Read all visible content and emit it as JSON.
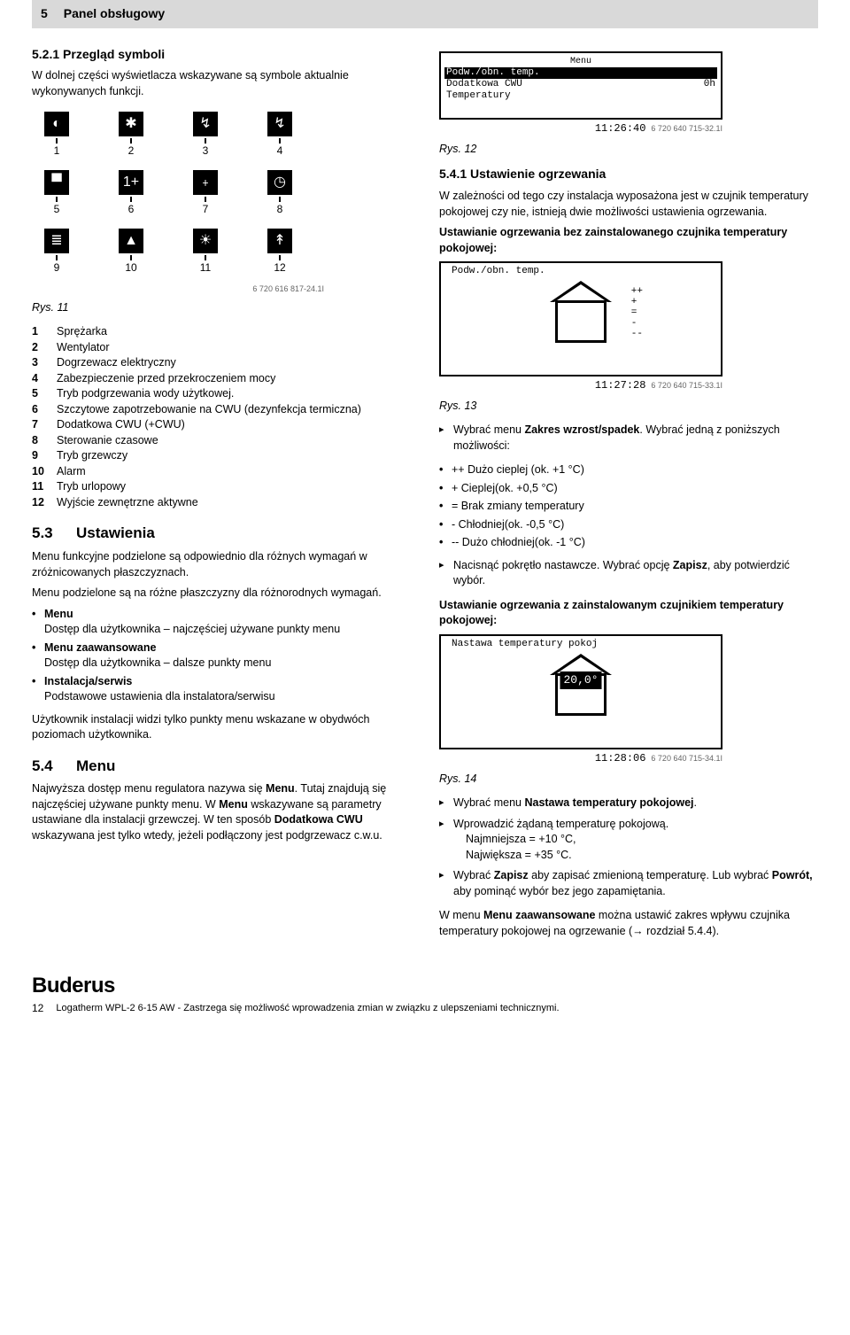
{
  "breadcrumb": {
    "num": "5",
    "title": "Panel obsługowy"
  },
  "s521": {
    "heading": "5.2.1   Przegląd symboli",
    "intro": "W dolnej części wyświetlacza wskazywane są symbole aktualnie wykonywanych funkcji."
  },
  "iconGrid": {
    "icons": [
      {
        "n": "1",
        "glyph": "◐"
      },
      {
        "n": "2",
        "glyph": "✱"
      },
      {
        "n": "3",
        "glyph": "↯"
      },
      {
        "n": "4",
        "glyph": "↯"
      },
      {
        "n": "5",
        "glyph": "▀"
      },
      {
        "n": "6",
        "glyph": "1+"
      },
      {
        "n": "7",
        "glyph": "﹢"
      },
      {
        "n": "8",
        "glyph": "◷"
      },
      {
        "n": "9",
        "glyph": "≣"
      },
      {
        "n": "10",
        "glyph": "▲"
      },
      {
        "n": "11",
        "glyph": "☀"
      },
      {
        "n": "12",
        "glyph": "↟"
      }
    ],
    "code": "6 720 616 817-24.1I"
  },
  "fig11": "Rys. 11",
  "legend": [
    {
      "n": "1",
      "t": "Sprężarka"
    },
    {
      "n": "2",
      "t": "Wentylator"
    },
    {
      "n": "3",
      "t": "Dogrzewacz elektryczny"
    },
    {
      "n": "4",
      "t": "Zabezpieczenie przed przekroczeniem mocy"
    },
    {
      "n": "5",
      "t": "Tryb podgrzewania wody użytkowej."
    },
    {
      "n": "6",
      "t": "Szczytowe zapotrzebowanie na CWU (dezynfekcja termiczna)"
    },
    {
      "n": "7",
      "t": "Dodatkowa CWU (+CWU)"
    },
    {
      "n": "8",
      "t": "Sterowanie czasowe"
    },
    {
      "n": "9",
      "t": "Tryb grzewczy"
    },
    {
      "n": "10",
      "t": "Alarm"
    },
    {
      "n": "11",
      "t": "Tryb urlopowy"
    },
    {
      "n": "12",
      "t": "Wyjście zewnętrzne aktywne"
    }
  ],
  "s53": {
    "num": "5.3",
    "title": "Ustawienia",
    "p1": "Menu funkcyjne podzielone są odpowiednio dla różnych wymagań w zróżnicowanych płaszczyznach.",
    "p2": "Menu podzielone są na różne płaszczyzny dla różnorodnych wymagań.",
    "items": [
      {
        "b": "Menu",
        "t": "Dostęp dla użytkownika  –  najczęściej używane punkty menu"
      },
      {
        "b": "Menu zaawansowane",
        "t": "Dostęp dla użytkownika  –  dalsze punkty menu"
      },
      {
        "b": "Instalacja/serwis",
        "t": "Podstawowe ustawienia dla instalatora/serwisu"
      }
    ],
    "p3": "Użytkownik instalacji widzi tylko punkty menu wskazane w obydwóch poziomach użytkownika."
  },
  "s54": {
    "num": "5.4",
    "title": "Menu",
    "p1a": "Najwyższa dostęp menu regulatora nazywa się ",
    "p1b": "Menu",
    "p1c": ". Tutaj znajdują się najczęściej używane punkty menu. W ",
    "p1d": "Menu",
    "p1e": " wskazywane są parametry ustawiane dla instalacji grzewczej. W ten sposób ",
    "p1f": "Dodatkowa CWU",
    "p1g": " wskazywana jest tylko wtedy, jeżeli podłączony jest podgrzewacz c.w.u."
  },
  "lcd12": {
    "title": "Menu",
    "r1": "Podw./obn. temp.",
    "r2l": "Dodatkowa CWU",
    "r2r": "0h",
    "r3": "Temperatury",
    "time": "11:26:40",
    "code": "6 720 640 715-32.1I"
  },
  "fig12": "Rys. 12",
  "s541": {
    "heading": "5.4.1   Ustawienie ogrzewania",
    "p": "W zależności od tego czy instalacja wyposażona jest w czujnik temperatury pokojowej czy nie, istnieją dwie możliwości ustawienia ogrzewania."
  },
  "noSensor": {
    "h": "Ustawianie ogrzewania bez zainstalowanego czujnika temperatury pokojowej:"
  },
  "lcd13": {
    "lbl": "Podw./obn. temp.",
    "marks": "++\n+\n=\n-\n--",
    "time": "11:27:28",
    "code": "6 720 640 715-33.1I"
  },
  "fig13": "Rys. 13",
  "step13a_a": "Wybrać menu ",
  "step13a_b": "Zakres wzrost/spadek",
  "step13a_c": ". Wybrać jedną z poniższych możliwości:",
  "opts13": [
    "++ Dużo cieplej (ok. +1 °C)",
    "+ Cieplej(ok. +0,5 °C)",
    "= Brak zmiany temperatury",
    "- Chłodniej(ok. -0,5 °C)",
    "-- Dużo chłodniej(ok. -1 °C)"
  ],
  "step13b_a": "Nacisnąć pokrętło nastawcze. Wybrać opcję ",
  "step13b_b": "Zapisz",
  "step13b_c": ", aby potwierdzić wybór.",
  "withSensor": {
    "h": "Ustawianie ogrzewania z zainstalowanym czujnikiem temperatury pokojowej:"
  },
  "lcd14": {
    "lbl": "Nastawa temperatury pokoj",
    "val": "20,0°",
    "time": "11:28:06",
    "code": "6 720 640 715-34.1I"
  },
  "fig14": "Rys. 14",
  "steps14": [
    {
      "a": "Wybrać menu ",
      "b": "Nastawa temperatury pokojowej",
      "c": "."
    },
    {
      "a": "Wprowadzić żądaną temperaturę pokojową.",
      "sub": "Najmniejsza = +10 °C,\nNajwiększa = +35 °C."
    },
    {
      "a": "Wybrać ",
      "b": "Zapisz",
      "c": " aby zapisać zmienioną temperaturę. Lub wybrać ",
      "d": "Powrót,",
      "e": " aby pominąć wybór bez jego zapamiętania."
    }
  ],
  "closing_a": "W menu ",
  "closing_b": "Menu zaawansowane",
  "closing_c": " można ustawić zakres wpływu czujnika temperatury pokojowej na ogrzewanie (→ rozdział 5.4.4).",
  "footer": {
    "logo": "Buderus",
    "page": "12",
    "line": "Logatherm WPL-2 6-15 AW - Zastrzega się możliwość wprowadzenia zmian w związku z ulepszeniami technicznymi."
  }
}
